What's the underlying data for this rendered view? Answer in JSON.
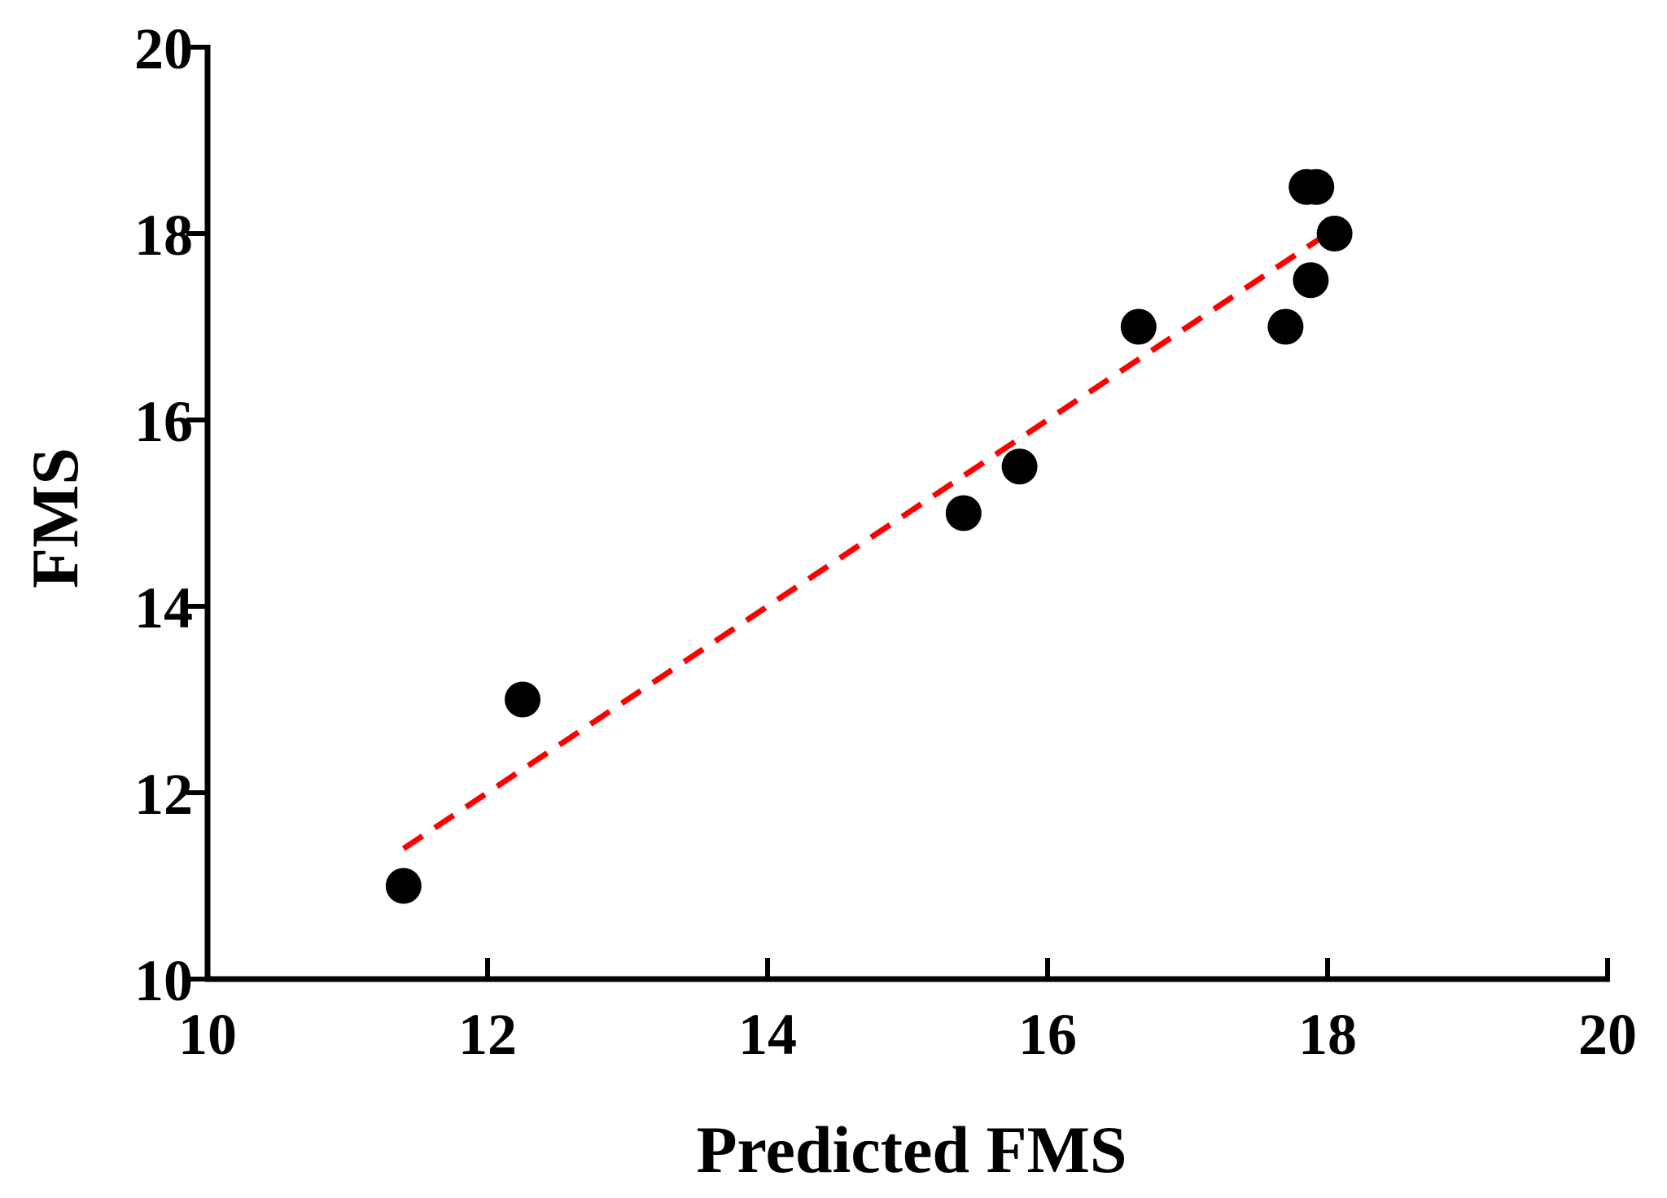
{
  "chart_data": {
    "type": "scatter",
    "title": "",
    "xlabel": "Predicted FMS",
    "ylabel": "FMS",
    "xlim": [
      10,
      20
    ],
    "ylim": [
      10,
      20
    ],
    "xticks": [
      10,
      12,
      14,
      16,
      18,
      20
    ],
    "yticks": [
      10,
      12,
      14,
      16,
      18,
      20
    ],
    "grid": false,
    "points": [
      {
        "x": 11.4,
        "y": 11.0
      },
      {
        "x": 12.25,
        "y": 13.0
      },
      {
        "x": 15.4,
        "y": 15.0
      },
      {
        "x": 15.8,
        "y": 15.5
      },
      {
        "x": 16.65,
        "y": 17.0
      },
      {
        "x": 17.7,
        "y": 17.0
      },
      {
        "x": 17.85,
        "y": 18.5
      },
      {
        "x": 17.92,
        "y": 18.5
      },
      {
        "x": 17.88,
        "y": 17.5
      },
      {
        "x": 18.05,
        "y": 18.0
      }
    ],
    "fit_line": {
      "x": [
        11.4,
        17.95
      ],
      "y": [
        11.4,
        17.95
      ]
    },
    "colors": {
      "points": "#000000",
      "fit_line": "#ff0000",
      "axes": "#000000"
    }
  }
}
